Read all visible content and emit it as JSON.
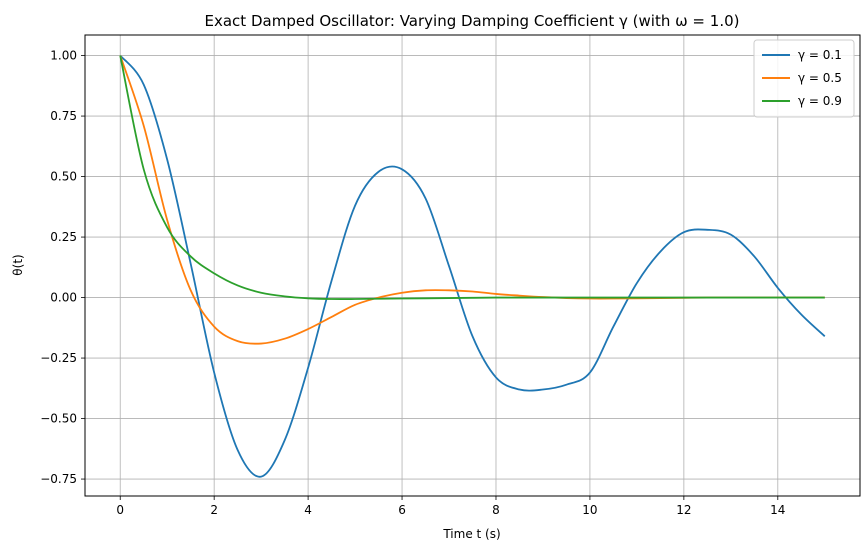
{
  "chart_data": {
    "type": "line",
    "title": "Exact Damped Oscillator: Varying Damping Coefficient γ (with ω = 1.0)",
    "xlabel": "Time t (s)",
    "ylabel": "θ(t)",
    "xlim": [
      -0.75,
      15.75
    ],
    "ylim": [
      -0.82,
      1.085
    ],
    "xticks": [
      0,
      2,
      4,
      6,
      8,
      10,
      12,
      14
    ],
    "xtick_labels": [
      "0",
      "2",
      "4",
      "6",
      "8",
      "10",
      "12",
      "14"
    ],
    "yticks": [
      -0.75,
      -0.5,
      -0.25,
      0.0,
      0.25,
      0.5,
      0.75,
      1.0
    ],
    "ytick_labels": [
      "−0.75",
      "−0.50",
      "−0.25",
      "0.00",
      "0.25",
      "0.50",
      "0.75",
      "1.00"
    ],
    "grid": true,
    "legend_position": "top-right",
    "series": [
      {
        "name": "γ = 0.1",
        "color": "#1f77b4",
        "x": [
          0,
          0.5,
          1,
          1.5,
          2,
          2.5,
          3,
          3.5,
          4,
          4.5,
          5,
          5.5,
          6,
          6.5,
          7,
          7.5,
          8,
          8.5,
          9,
          9.5,
          10,
          10.5,
          11,
          11.5,
          12,
          12.5,
          13,
          13.5,
          14,
          14.5,
          15
        ],
        "y": [
          1.0,
          0.88,
          0.57,
          0.14,
          -0.31,
          -0.63,
          -0.74,
          -0.59,
          -0.29,
          0.07,
          0.38,
          0.52,
          0.53,
          0.41,
          0.13,
          -0.16,
          -0.33,
          -0.38,
          -0.38,
          -0.36,
          -0.31,
          -0.12,
          0.06,
          0.19,
          0.27,
          0.28,
          0.26,
          0.17,
          0.04,
          -0.07,
          -0.16
        ]
      },
      {
        "name": "γ = 0.5",
        "color": "#ff7f0e",
        "x": [
          0,
          0.5,
          1,
          1.5,
          2,
          2.5,
          3,
          3.5,
          4,
          4.5,
          5,
          5.5,
          6,
          6.5,
          7,
          7.5,
          8,
          8.5,
          9,
          9.5,
          10,
          10.5,
          11,
          11.5,
          12,
          12.5,
          13,
          13.5,
          14,
          14.5,
          15
        ],
        "y": [
          1.0,
          0.71,
          0.32,
          0.03,
          -0.12,
          -0.18,
          -0.19,
          -0.17,
          -0.13,
          -0.08,
          -0.03,
          0.0,
          0.02,
          0.03,
          0.03,
          0.025,
          0.015,
          0.008,
          0.002,
          -0.002,
          -0.004,
          -0.004,
          -0.003,
          -0.002,
          -0.001,
          0.0,
          0.0,
          0.0,
          0.0,
          0.0,
          0.0
        ]
      },
      {
        "name": "γ = 0.9",
        "color": "#2ca02c",
        "x": [
          0,
          0.5,
          1,
          1.5,
          2,
          2.5,
          3,
          3.5,
          4,
          4.5,
          5,
          5.5,
          6,
          6.5,
          7,
          7.5,
          8,
          8.5,
          9,
          9.5,
          10,
          10.5,
          11,
          11.5,
          12,
          12.5,
          13,
          13.5,
          14,
          14.5,
          15
        ],
        "y": [
          1.0,
          0.53,
          0.29,
          0.17,
          0.1,
          0.05,
          0.02,
          0.005,
          -0.003,
          -0.006,
          -0.006,
          -0.005,
          -0.004,
          -0.003,
          -0.002,
          -0.001,
          0.0,
          0.0,
          0.0,
          0.0,
          0.0,
          0.0,
          0.0,
          0.0,
          0.0,
          0.0,
          0.0,
          0.0,
          0.0,
          0.0,
          0.0
        ]
      }
    ]
  }
}
